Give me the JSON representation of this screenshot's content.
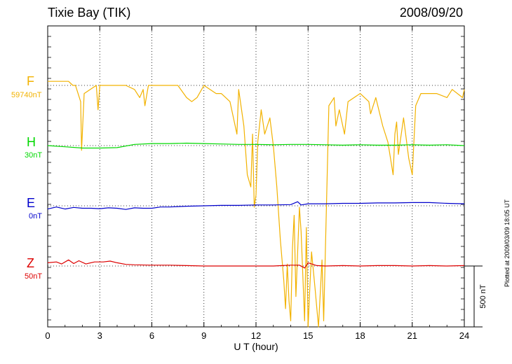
{
  "header": {
    "station": "Tixie Bay (TIK)",
    "date": "2008/09/20"
  },
  "footer": {
    "plotted_note": "Plotted at 2009/03/09 18:05 UT"
  },
  "chart_data": {
    "type": "line",
    "title": "Tixie Bay (TIK)",
    "date": "2008/09/20",
    "xlabel": "U T (hour)",
    "xlim": [
      0,
      24
    ],
    "xticks": [
      0,
      3,
      6,
      9,
      12,
      15,
      18,
      21,
      24
    ],
    "scale_bar": "500 nT",
    "grid": true,
    "series": [
      {
        "name": "F",
        "baseline_label": "59740nT",
        "color": "#f2b200",
        "x": [
          0,
          0.5,
          0.9,
          1.2,
          1.45,
          1.6,
          1.9,
          1.95,
          2.1,
          2.8,
          2.9,
          3.0,
          4.5,
          5.0,
          5.3,
          5.5,
          5.6,
          5.8,
          6.8,
          7.5,
          8.0,
          8.3,
          8.6,
          9.0,
          9.7,
          10.0,
          10.5,
          10.9,
          11.0,
          11.3,
          11.5,
          11.7,
          11.8,
          11.9,
          12.0,
          12.1,
          12.3,
          12.5,
          12.8,
          13.0,
          13.2,
          13.4,
          13.6,
          13.7,
          13.8,
          13.9,
          14.0,
          14.1,
          14.2,
          14.3,
          14.5,
          14.6,
          14.8,
          14.9,
          15.0,
          15.1,
          15.2,
          15.4,
          15.6,
          15.8,
          15.9,
          16.0,
          16.2,
          16.5,
          16.6,
          16.8,
          17.1,
          17.3,
          18.0,
          18.5,
          18.6,
          18.9,
          19.3,
          19.6,
          19.9,
          20.0,
          20.1,
          20.2,
          20.5,
          20.8,
          21.0,
          21.2,
          21.5,
          22.4,
          23.0,
          23.3,
          23.9,
          24.0
        ],
        "y": [
          1,
          1,
          1,
          1,
          0,
          0,
          -4,
          -16,
          -2,
          0,
          -6,
          0,
          0,
          -1,
          -3,
          -1,
          -5,
          0,
          0,
          0,
          -3,
          -4,
          -3,
          0,
          -2,
          -2,
          -4,
          -12,
          -1,
          -10,
          -22,
          -25,
          -12,
          -30,
          -27,
          -14,
          -6,
          -12,
          -8,
          -15,
          -25,
          -38,
          -48,
          -55,
          -44,
          -53,
          -58,
          -40,
          -32,
          -52,
          -30,
          -36,
          -58,
          -35,
          -63,
          -50,
          -41,
          -50,
          -62,
          -43,
          -58,
          -40,
          -5,
          -3,
          -10,
          -6,
          -12,
          -4,
          -2,
          -4,
          -7,
          -3,
          -10,
          -14,
          -22,
          -12,
          -9,
          -17,
          -8,
          -18,
          -22,
          -5,
          -2,
          -2,
          -3,
          -1,
          -3,
          -1
        ]
      },
      {
        "name": "H",
        "baseline_label": "30nT",
        "color": "#00d800",
        "x": [
          0,
          1,
          2,
          3,
          4,
          5,
          6,
          7,
          8,
          9,
          10,
          11,
          12,
          13,
          14,
          15,
          16,
          17,
          18,
          19,
          20,
          21,
          22,
          23,
          24
        ],
        "y": [
          0,
          -0.3,
          -0.6,
          -0.6,
          -0.5,
          0.3,
          0.5,
          0.5,
          0.6,
          0.5,
          0.4,
          0.3,
          0.3,
          0.2,
          0.3,
          0.3,
          0.2,
          0.1,
          0.2,
          0.1,
          0.1,
          0.2,
          0.1,
          0.2,
          0
        ]
      },
      {
        "name": "E",
        "baseline_label": "0nT",
        "color": "#0000cc",
        "x": [
          0,
          0.5,
          1,
          1.5,
          2,
          2.5,
          3,
          3.5,
          4,
          4.5,
          5,
          5.5,
          6,
          6.5,
          7,
          8,
          9,
          10,
          11,
          12,
          13,
          14,
          14.4,
          14.6,
          15,
          16,
          17,
          18,
          19,
          20,
          21,
          22,
          23,
          24
        ],
        "y": [
          -0.8,
          -0.3,
          -0.8,
          -0.4,
          -0.6,
          -0.6,
          -0.7,
          -0.5,
          -0.6,
          -0.9,
          -0.5,
          -0.6,
          -0.6,
          -0.3,
          -0.3,
          -0.1,
          0,
          0.1,
          0.1,
          0.2,
          0.2,
          0.3,
          1,
          0.2,
          0.5,
          0.5,
          0.6,
          0.6,
          0.7,
          0.7,
          0.8,
          0.8,
          0.6,
          0.5
        ]
      },
      {
        "name": "Z",
        "baseline_label": "50nT",
        "color": "#dd0000",
        "x": [
          0,
          0.5,
          0.8,
          1.2,
          1.5,
          1.8,
          2.2,
          2.7,
          3.2,
          3.6,
          4.0,
          4.5,
          5,
          6,
          7,
          8,
          9,
          10,
          11,
          12,
          13,
          13.5,
          14,
          14.5,
          14.8,
          15,
          15.5,
          16,
          17,
          18,
          19,
          20,
          21,
          22,
          23,
          24
        ],
        "y": [
          0.8,
          1,
          0.5,
          1.5,
          0.6,
          1.3,
          0.5,
          1,
          1,
          1.2,
          0.8,
          0.4,
          0.3,
          0.2,
          0.2,
          0.1,
          0,
          0,
          0,
          0,
          0,
          0.1,
          0.2,
          0.2,
          -0.5,
          0.8,
          0.1,
          0,
          0.1,
          0,
          0.1,
          0.1,
          0,
          0.1,
          0,
          0.1
        ]
      }
    ]
  }
}
